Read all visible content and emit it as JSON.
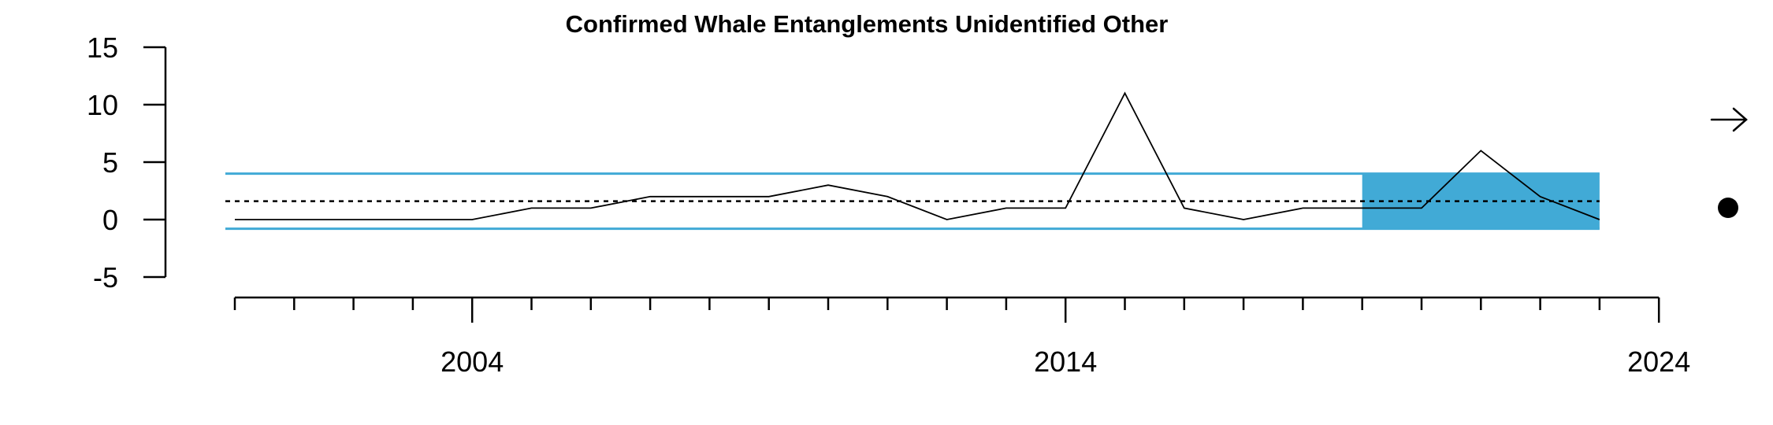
{
  "chart_data": {
    "type": "line",
    "title": "Confirmed Whale Entanglements Unidentified Other",
    "xlabel": "",
    "ylabel": "",
    "xlim": [
      1999.6,
      2024
    ],
    "ylim": [
      -5,
      15
    ],
    "y_ticks": [
      -5,
      0,
      5,
      10,
      15
    ],
    "x_tick_labels": [
      2004,
      2014,
      2024
    ],
    "x_minor_ticks": [
      2000,
      2001,
      2002,
      2003,
      2004,
      2005,
      2006,
      2007,
      2008,
      2009,
      2010,
      2011,
      2012,
      2013,
      2014,
      2015,
      2016,
      2017,
      2018,
      2019,
      2020,
      2021,
      2022,
      2023,
      2024
    ],
    "series": [
      {
        "x": [
          2000,
          2001,
          2002,
          2003,
          2004,
          2005,
          2006,
          2007,
          2008,
          2009,
          2010,
          2011,
          2012,
          2013,
          2014,
          2015,
          2016,
          2017,
          2018,
          2019,
          2020,
          2021,
          2022,
          2023
        ],
        "values": [
          0,
          0,
          0,
          0,
          0,
          1,
          1,
          2,
          2,
          2,
          3,
          2,
          0,
          1,
          1,
          11,
          1,
          0,
          1,
          1,
          1,
          6,
          2,
          0
        ]
      }
    ],
    "mean": 1.6,
    "upper_sd": 4.0,
    "lower_sd": -0.8,
    "recent_window": [
      2019,
      2023
    ],
    "trend_indicator": "arrow-right",
    "mean_indicator": "dot",
    "colors": {
      "line": "#000000",
      "band": "#41aad6",
      "mean": "#000000"
    },
    "grid": false
  }
}
